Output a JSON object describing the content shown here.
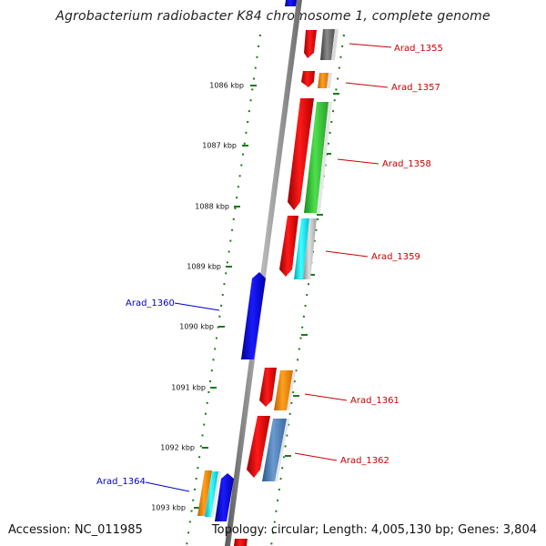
{
  "title": "Agrobacterium radiobacter K84 chromosome 1, complete genome",
  "footer": {
    "accession": "Accession: NC_011985",
    "topology": "Topology: circular; Length: 4,005,130 bp; Genes: 3,804"
  },
  "ticks": [
    "1086 kbp",
    "1087 kbp",
    "1088 kbp",
    "1089 kbp",
    "1090 kbp",
    "1091 kbp",
    "1092 kbp",
    "1093 kbp"
  ],
  "gene_labels": [
    {
      "text": "Arad_1355",
      "color": "#cc0000"
    },
    {
      "text": "Arad_1357",
      "color": "#cc0000"
    },
    {
      "text": "Arad_1358",
      "color": "#cc0000"
    },
    {
      "text": "Arad_1359",
      "color": "#cc0000"
    },
    {
      "text": "Arad_1360",
      "color": "#0000cc"
    },
    {
      "text": "Arad_1361",
      "color": "#cc0000"
    },
    {
      "text": "Arad_1362",
      "color": "#cc0000"
    },
    {
      "text": "Arad_1364",
      "color": "#0000cc"
    }
  ],
  "colors": {
    "forward_cds": "#ff0000",
    "reverse_cds": "#0000ff",
    "rna": "#ff8c00",
    "tick": "#1a7a1a",
    "backbone": "#888888"
  }
}
